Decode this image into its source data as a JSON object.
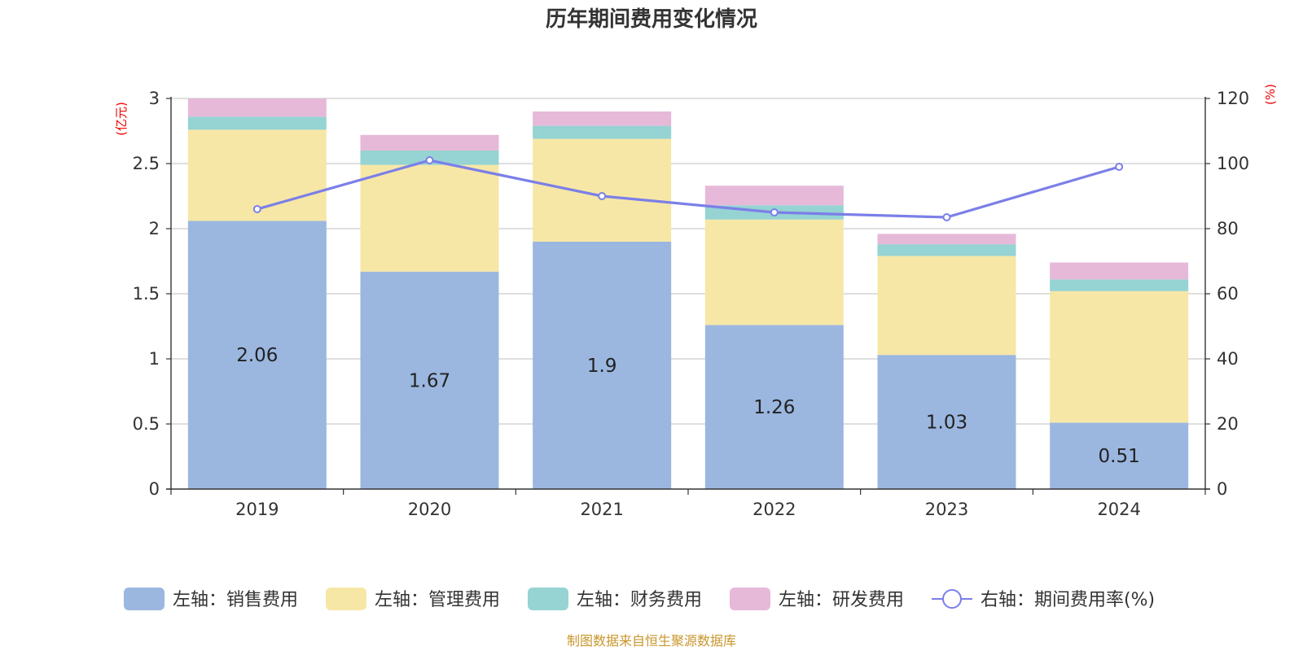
{
  "chart_data": {
    "type": "bar",
    "title": "历年期间费用变化情况",
    "categories": [
      "2019",
      "2020",
      "2021",
      "2022",
      "2023",
      "2024"
    ],
    "series": [
      {
        "name": "左轴：销售费用",
        "axis": "left",
        "color": "#9bb7e0",
        "values": [
          2.06,
          1.67,
          1.9,
          1.26,
          1.03,
          0.51
        ],
        "show_labels": true
      },
      {
        "name": "左轴：管理费用",
        "axis": "left",
        "color": "#f7e7a6",
        "values": [
          0.7,
          0.82,
          0.79,
          0.81,
          0.76,
          1.01
        ]
      },
      {
        "name": "左轴：财务费用",
        "axis": "left",
        "color": "#96d3d3",
        "values": [
          0.1,
          0.11,
          0.1,
          0.11,
          0.09,
          0.09
        ]
      },
      {
        "name": "左轴：研发费用",
        "axis": "left",
        "color": "#e6b9d9",
        "values": [
          0.14,
          0.12,
          0.11,
          0.15,
          0.08,
          0.13
        ]
      }
    ],
    "line_series": {
      "name": "右轴：期间费用率(%)",
      "axis": "right",
      "color": "#7b7fe8",
      "values": [
        86,
        101,
        90,
        85,
        83.5,
        99
      ]
    },
    "left_axis": {
      "unit": "(亿元)",
      "ylim": [
        0,
        3
      ],
      "ticks": [
        "0",
        "0.5",
        "1",
        "1.5",
        "2",
        "2.5",
        "3"
      ]
    },
    "right_axis": {
      "unit": "(%)",
      "ylim": [
        0,
        120
      ],
      "ticks": [
        "0",
        "20",
        "40",
        "60",
        "80",
        "100",
        "120"
      ]
    },
    "grid": true,
    "legend_position": "bottom",
    "source": "制图数据来自恒生聚源数据库"
  }
}
